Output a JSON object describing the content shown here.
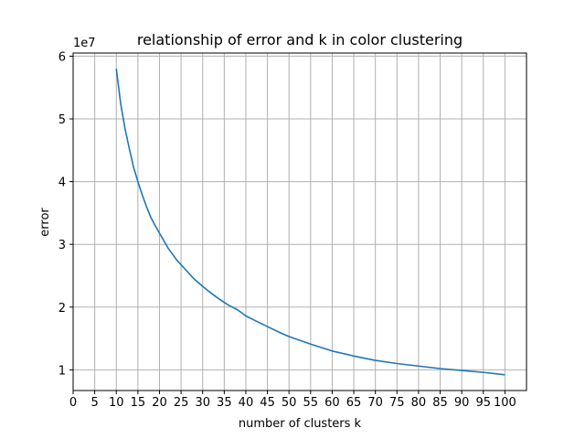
{
  "chart_data": {
    "type": "line",
    "title": "relationship of error and k in color clustering",
    "xlabel": "number of clusters k",
    "ylabel": "error",
    "y_offset_text": "1e7",
    "y_scale_factor": 10000000,
    "xlim": [
      0,
      105
    ],
    "ylim": [
      6700000,
      60500000
    ],
    "x_ticks": [
      0,
      5,
      10,
      15,
      20,
      25,
      30,
      35,
      40,
      45,
      50,
      55,
      60,
      65,
      70,
      75,
      80,
      85,
      90,
      95,
      100
    ],
    "x_tick_labels": [
      "0",
      "5",
      "10",
      "15",
      "20",
      "25",
      "30",
      "35",
      "40",
      "45",
      "50",
      "55",
      "60",
      "65",
      "70",
      "75",
      "80",
      "85",
      "90",
      "95",
      "100"
    ],
    "y_ticks": [
      10000000,
      20000000,
      30000000,
      40000000,
      50000000,
      60000000
    ],
    "y_tick_labels": [
      "1",
      "2",
      "3",
      "4",
      "5",
      "6"
    ],
    "grid": true,
    "series": [
      {
        "color": "#1f77b4",
        "x": [
          10,
          11,
          12,
          13,
          14,
          15,
          16,
          17,
          18,
          19,
          20,
          22,
          24,
          26,
          28,
          30,
          32,
          34,
          36,
          38,
          40,
          42,
          45,
          48,
          50,
          55,
          60,
          65,
          70,
          75,
          80,
          85,
          90,
          95,
          100
        ],
        "y": [
          58000000,
          52500000,
          48500000,
          45300000,
          42300000,
          40000000,
          37900000,
          36000000,
          34300000,
          33000000,
          31800000,
          29400000,
          27500000,
          26000000,
          24500000,
          23300000,
          22200000,
          21200000,
          20300000,
          19600000,
          18600000,
          17900000,
          16900000,
          15900000,
          15300000,
          14100000,
          13000000,
          12200000,
          11500000,
          11000000,
          10600000,
          10200000,
          9900000,
          9600000,
          9200000
        ]
      }
    ]
  }
}
